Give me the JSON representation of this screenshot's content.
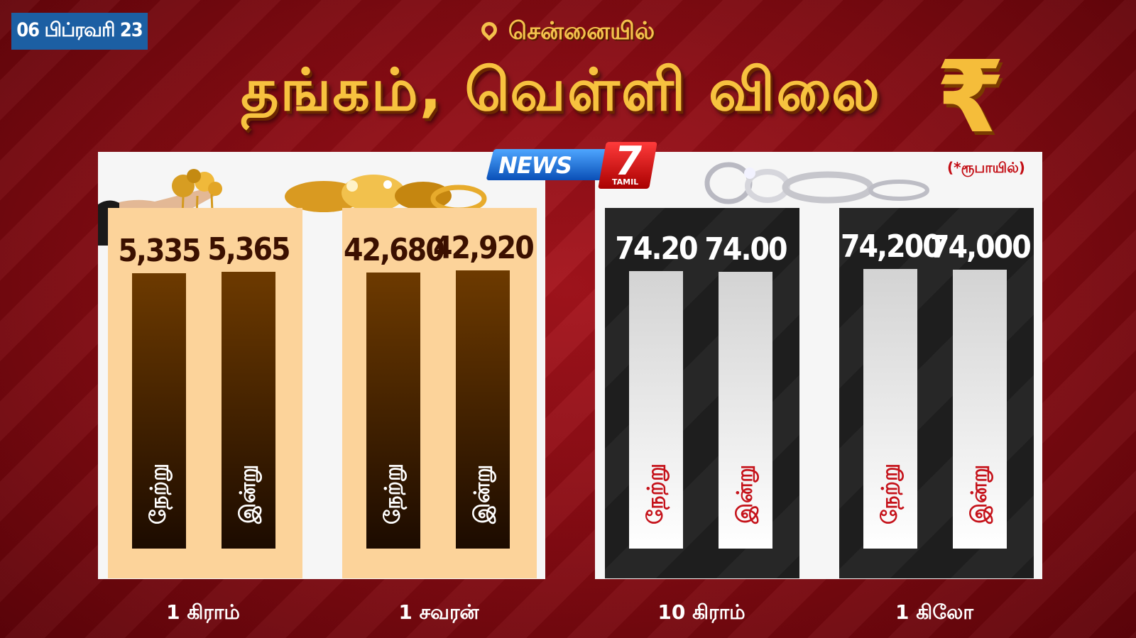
{
  "header": {
    "date": "06 பிப்ரவரி 23",
    "city": "சென்னையில்",
    "title": "தங்கம், வெள்ளி விலை",
    "currency_symbol": "₹",
    "unit_note": "(*ரூபாயில்)"
  },
  "logo": {
    "text": "NEWS",
    "number": "7",
    "sub": "TAMIL"
  },
  "labels": {
    "yesterday": "நேற்று",
    "today": "இன்று"
  },
  "colors": {
    "background": "#8a0c14",
    "accent_gold": "#f7c23f",
    "gold_panel": "#fcd39a",
    "silver_panel": "#222222",
    "badge_blue": "#1c5fa3"
  },
  "chart_data": [
    {
      "type": "bar",
      "metal": "gold",
      "unit_label": "1 கிராம்",
      "categories": [
        "நேற்று",
        "இன்று"
      ],
      "values": [
        5335,
        5365
      ],
      "display_values": [
        "5,335",
        "5,365"
      ],
      "ylim": [
        0,
        6600
      ]
    },
    {
      "type": "bar",
      "metal": "gold",
      "unit_label": "1 சவரன்",
      "categories": [
        "நேற்று",
        "இன்று"
      ],
      "values": [
        42680,
        42920
      ],
      "display_values": [
        "42,680",
        "42,920"
      ],
      "ylim": [
        0,
        52600
      ]
    },
    {
      "type": "bar",
      "metal": "silver",
      "unit_label": "10 கிராம்",
      "categories": [
        "நேற்று",
        "இன்று"
      ],
      "values": [
        74.2,
        74.0
      ],
      "display_values": [
        "74.20",
        "74.00"
      ],
      "ylim": [
        0,
        91
      ]
    },
    {
      "type": "bar",
      "metal": "silver",
      "unit_label": "1 கிலோ",
      "categories": [
        "நேற்று",
        "இன்று"
      ],
      "values": [
        74200,
        74000
      ],
      "display_values": [
        "74,200",
        "74,000"
      ],
      "ylim": [
        0,
        90300
      ]
    }
  ]
}
